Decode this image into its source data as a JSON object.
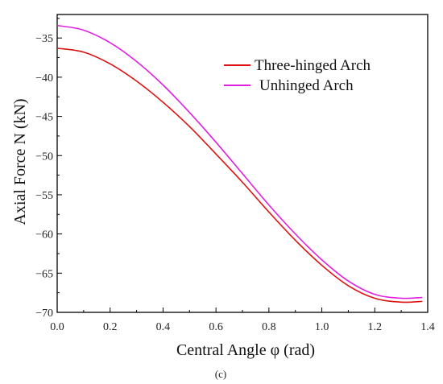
{
  "chart_data": {
    "type": "line",
    "xlabel": "Central Angle φ (rad)",
    "ylabel": "Axial Force N (kN)",
    "caption": "(c)",
    "xlim": [
      0.0,
      1.4
    ],
    "ylim": [
      -70,
      -32
    ],
    "x_ticks": [
      0.0,
      0.2,
      0.4,
      0.6,
      0.8,
      1.0,
      1.2,
      1.4
    ],
    "x_tick_labels": [
      "0.0",
      "0.2",
      "0.4",
      "0.6",
      "0.8",
      "1.0",
      "1.2",
      "1.4"
    ],
    "y_ticks": [
      -35,
      -40,
      -45,
      -50,
      -55,
      -60,
      -65,
      -70
    ],
    "y_tick_labels": [
      "−35",
      "−40",
      "−45",
      "−50",
      "−55",
      "−60",
      "−65",
      "−70"
    ],
    "legend_position": "top-right",
    "grid": false,
    "series": [
      {
        "name": "Three-hinged Arch",
        "color": "#dd1111",
        "x": [
          0.0,
          0.1,
          0.2,
          0.3,
          0.4,
          0.5,
          0.6,
          0.7,
          0.8,
          0.9,
          1.0,
          1.1,
          1.2,
          1.3,
          1.38
        ],
        "values": [
          -36.3,
          -36.8,
          -38.3,
          -40.5,
          -43.2,
          -46.3,
          -49.8,
          -53.4,
          -57.2,
          -60.8,
          -64.0,
          -66.6,
          -68.2,
          -68.7,
          -68.6
        ]
      },
      {
        "name": "Unhinged Arch",
        "color": "#e020e0",
        "x": [
          0.0,
          0.1,
          0.2,
          0.3,
          0.4,
          0.5,
          0.6,
          0.7,
          0.8,
          0.9,
          1.0,
          1.1,
          1.2,
          1.3,
          1.38
        ],
        "values": [
          -33.4,
          -34.0,
          -35.6,
          -38.0,
          -41.0,
          -44.5,
          -48.3,
          -52.3,
          -56.3,
          -60.0,
          -63.3,
          -66.0,
          -67.7,
          -68.2,
          -68.1
        ]
      }
    ]
  }
}
